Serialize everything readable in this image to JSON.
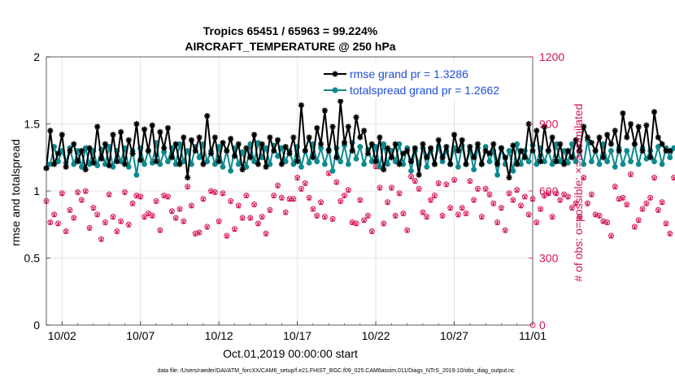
{
  "chart_data": {
    "type": "line",
    "title": [
      "Tropics 65451 / 65963 = 99.224%",
      "AIRCRAFT_TEMPERATURE @ 250 hPa"
    ],
    "xlabel": "Oct.01,2019 00:00:00 start",
    "ylabel": "rmse and totalspread",
    "ylabel_right": "# of obs: o=possible; ×=assimilated",
    "xticks": [
      {
        "day": 2,
        "label": "10/02"
      },
      {
        "day": 7,
        "label": "10/07"
      },
      {
        "day": 12,
        "label": "10/12"
      },
      {
        "day": 17,
        "label": "10/17"
      },
      {
        "day": 22,
        "label": "10/22"
      },
      {
        "day": 27,
        "label": "10/27"
      },
      {
        "day": 32,
        "label": "11/01"
      }
    ],
    "xlim": [
      1,
      32
    ],
    "ylim": [
      0,
      2
    ],
    "yticks": [
      0,
      0.5,
      1,
      1.5,
      2
    ],
    "ytick_labels": [
      "0",
      "0.5",
      "1",
      "1.5",
      "2"
    ],
    "ylim_right": [
      0,
      1200
    ],
    "yticks_right": [
      0,
      300,
      600,
      900,
      1200
    ],
    "ytick_labels_right": [
      "0",
      "300",
      "600",
      "900",
      "1200"
    ],
    "grid": true,
    "legend_position": "top-right",
    "footnote": "data file: /Users/raeder/DAI/ATM_forcXX/CAM6_setup/f.e21.FHIST_BGC.f09_025.CAM6assim.011/Diags_NTrS_2019-10/obs_diag_output.nc",
    "colors": {
      "rmse": "#000000",
      "spread": "#0b8a8f",
      "obs": "#d4145a",
      "legend_text": "#1f4fd8"
    },
    "series": [
      {
        "name": "rmse grand pr = 1.3286",
        "key": "rmse",
        "start_day": 1.0,
        "step_days": 0.25,
        "values": [
          1.17,
          1.45,
          1.2,
          1.28,
          1.42,
          1.18,
          1.3,
          1.35,
          1.22,
          1.3,
          1.16,
          1.32,
          1.21,
          1.48,
          1.24,
          1.35,
          1.19,
          1.42,
          1.22,
          1.44,
          1.2,
          1.38,
          1.28,
          1.5,
          1.23,
          1.46,
          1.3,
          1.49,
          1.22,
          1.44,
          1.32,
          1.47,
          1.25,
          1.35,
          1.2,
          1.4,
          1.1,
          1.38,
          1.3,
          1.4,
          1.2,
          1.56,
          1.28,
          1.4,
          1.22,
          1.36,
          1.3,
          1.39,
          1.26,
          1.35,
          1.16,
          1.32,
          1.25,
          1.42,
          1.2,
          1.35,
          1.18,
          1.4,
          1.3,
          1.38,
          1.2,
          1.33,
          1.28,
          1.4,
          1.22,
          1.64,
          1.3,
          1.4,
          1.25,
          1.47,
          1.35,
          1.6,
          1.3,
          1.48,
          1.25,
          1.67,
          1.36,
          1.48,
          1.3,
          1.55,
          1.4,
          1.45,
          1.28,
          1.35,
          1.22,
          1.4,
          1.16,
          1.32,
          1.25,
          1.35,
          1.2,
          1.28,
          1.3,
          1.22,
          1.32,
          1.12,
          1.35,
          1.25,
          1.32,
          1.2,
          1.38,
          1.25,
          1.33,
          1.2,
          1.42,
          1.3,
          1.38,
          1.2,
          1.33,
          1.25,
          1.35,
          1.2,
          1.3,
          1.28,
          1.35,
          1.2,
          1.32,
          1.25,
          1.1,
          1.34,
          1.2,
          1.3,
          1.25,
          1.5,
          1.3,
          1.45,
          1.22,
          1.48,
          1.3,
          1.4,
          1.22,
          1.35,
          1.2,
          1.3,
          1.25,
          1.38,
          1.3,
          1.48,
          1.4,
          1.36,
          1.3,
          1.4,
          1.25,
          1.42,
          1.35,
          1.45,
          1.3,
          1.58,
          1.4,
          1.5,
          1.35,
          1.48,
          1.3,
          1.49,
          1.25,
          1.59,
          1.4,
          1.35,
          1.3,
          1.3
        ]
      },
      {
        "name": "totalspread grand pr = 1.2662",
        "key": "spread",
        "start_day": 1.0,
        "step_days": 0.25,
        "values": [
          1.17,
          1.2,
          1.33,
          1.22,
          1.3,
          1.21,
          1.32,
          1.2,
          1.3,
          1.18,
          1.32,
          1.2,
          1.3,
          1.19,
          1.31,
          1.2,
          1.33,
          1.18,
          1.3,
          1.22,
          1.32,
          1.18,
          1.3,
          1.12,
          1.32,
          1.2,
          1.3,
          1.21,
          1.36,
          1.2,
          1.29,
          1.22,
          1.32,
          1.2,
          1.35,
          1.22,
          1.3,
          1.2,
          1.33,
          1.25,
          1.35,
          1.22,
          1.3,
          1.2,
          1.33,
          1.18,
          1.3,
          1.15,
          1.32,
          1.2,
          1.29,
          1.18,
          1.35,
          1.22,
          1.36,
          1.25,
          1.32,
          1.2,
          1.34,
          1.26,
          1.32,
          1.22,
          1.3,
          1.2,
          1.33,
          1.18,
          1.3,
          1.21,
          1.35,
          1.22,
          1.32,
          1.2,
          1.31,
          1.15,
          1.32,
          1.22,
          1.34,
          1.2,
          1.36,
          1.24,
          1.33,
          1.2,
          1.31,
          1.22,
          1.33,
          1.18,
          1.35,
          1.2,
          1.3,
          1.22,
          1.35,
          1.2,
          1.32,
          1.15,
          1.3,
          1.2,
          1.32,
          1.18,
          1.3,
          1.2,
          1.33,
          1.22,
          1.3,
          1.2,
          1.32,
          1.18,
          1.34,
          1.2,
          1.3,
          1.16,
          1.32,
          1.2,
          1.33,
          1.22,
          1.3,
          1.12,
          1.32,
          1.2,
          1.3,
          1.15,
          1.35,
          1.2,
          1.3,
          1.22,
          1.34,
          1.2,
          1.32,
          1.22,
          1.3,
          1.2,
          1.35,
          1.22,
          1.3,
          1.21,
          1.35,
          1.22,
          1.3,
          1.2,
          1.38,
          1.22,
          1.3,
          1.2,
          1.35,
          1.22,
          1.3,
          1.18,
          1.32,
          1.2,
          1.3,
          1.22,
          1.35,
          1.2,
          1.32,
          1.24,
          1.3,
          1.22,
          1.33,
          1.2,
          1.32,
          1.25,
          1.32
        ]
      },
      {
        "name": "obs possible",
        "key": "obs_possible",
        "marker": "o",
        "axis": "right",
        "start_day": 1.0,
        "step_days": 0.25,
        "values": [
          555,
          460,
          495,
          455,
          590,
          420,
          515,
          480,
          595,
          560,
          600,
          435,
          525,
          495,
          385,
          460,
          585,
          485,
          420,
          465,
          595,
          450,
          545,
          580,
          575,
          485,
          500,
          490,
          555,
          425,
          580,
          575,
          510,
          480,
          520,
          465,
          620,
          535,
          410,
          415,
          565,
          440,
          600,
          595,
          465,
          590,
          400,
          555,
          430,
          535,
          480,
          580,
          480,
          540,
          455,
          485,
          410,
          515,
          580,
          625,
          570,
          505,
          565,
          565,
          660,
          610,
          635,
          570,
          520,
          490,
          550,
          485,
          680,
          475,
          640,
          555,
          580,
          605,
          460,
          455,
          560,
          470,
          490,
          420,
          710,
          615,
          455,
          550,
          615,
          490,
          590,
          500,
          425,
          665,
          645,
          610,
          505,
          485,
          560,
          580,
          635,
          490,
          630,
          525,
          650,
          495,
          525,
          500,
          645,
          560,
          610,
          485,
          610,
          585,
          545,
          460,
          525,
          425,
          590,
          560,
          605,
          535,
          575,
          495,
          565,
          460,
          520,
          580,
          590,
          485,
          590,
          560,
          585,
          575,
          525,
          545,
          485,
          660,
          545,
          585,
          495,
          490,
          465,
          460,
          400,
          620,
          565,
          570,
          540,
          675,
          440,
          470,
          520,
          545,
          570,
          660,
          515,
          550,
          455,
          410,
          660,
          535,
          545,
          565,
          715,
          510
        ]
      },
      {
        "name": "obs assimilated",
        "key": "obs_assimilated",
        "marker": "x",
        "axis": "right",
        "start_day": 1.0,
        "step_days": 0.25,
        "values": [
          552,
          458,
          493,
          452,
          587,
          418,
          512,
          478,
          592,
          557,
          597,
          432,
          522,
          492,
          382,
          457,
          582,
          482,
          417,
          462,
          592,
          447,
          542,
          577,
          572,
          482,
          497,
          487,
          552,
          422,
          577,
          572,
          507,
          477,
          517,
          462,
          617,
          532,
          407,
          412,
          562,
          437,
          597,
          592,
          462,
          587,
          397,
          552,
          427,
          532,
          477,
          577,
          477,
          537,
          452,
          482,
          407,
          512,
          577,
          622,
          567,
          502,
          562,
          562,
          657,
          607,
          632,
          567,
          517,
          487,
          547,
          482,
          677,
          472,
          637,
          552,
          577,
          602,
          457,
          452,
          557,
          467,
          487,
          417,
          707,
          612,
          452,
          547,
          612,
          487,
          587,
          497,
          422,
          662,
          642,
          607,
          502,
          482,
          557,
          577,
          632,
          487,
          627,
          522,
          647,
          492,
          522,
          497,
          642,
          557,
          607,
          482,
          607,
          582,
          542,
          457,
          522,
          422,
          587,
          557,
          602,
          532,
          572,
          492,
          562,
          457,
          517,
          577,
          587,
          482,
          587,
          557,
          582,
          572,
          522,
          542,
          482,
          657,
          542,
          582,
          492,
          487,
          462,
          457,
          397,
          617,
          562,
          567,
          537,
          672,
          437,
          467,
          517,
          542,
          567,
          657,
          512,
          547,
          452,
          407,
          657,
          532,
          542,
          562,
          712,
          507
        ]
      }
    ]
  }
}
